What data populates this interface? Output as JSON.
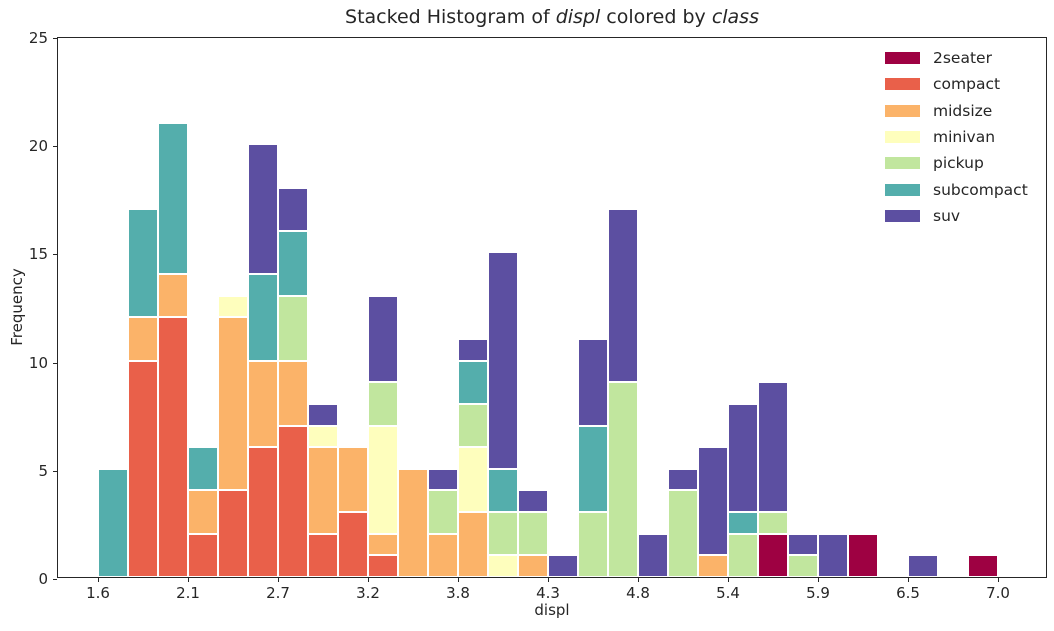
{
  "title": {
    "prefix": "Stacked Histogram of ",
    "var1": "displ",
    "middle": " colored by ",
    "var2": "class"
  },
  "axes": {
    "xlabel": "displ",
    "ylabel": "Frequency",
    "xlim": [
      1.36,
      7.3
    ],
    "ylim": [
      0,
      25
    ],
    "grid": false,
    "y_ticks": [
      0,
      5,
      10,
      15,
      20,
      25
    ],
    "x_ticks": [
      {
        "value": 1.6,
        "label": "1.6"
      },
      {
        "value": 2.14,
        "label": "2.1"
      },
      {
        "value": 2.68,
        "label": "2.7"
      },
      {
        "value": 3.22,
        "label": "3.2"
      },
      {
        "value": 3.76,
        "label": "3.8"
      },
      {
        "value": 4.3,
        "label": "4.3"
      },
      {
        "value": 4.84,
        "label": "4.8"
      },
      {
        "value": 5.38,
        "label": "5.4"
      },
      {
        "value": 5.92,
        "label": "5.9"
      },
      {
        "value": 6.46,
        "label": "6.5"
      },
      {
        "value": 7.0,
        "label": "7.0"
      }
    ]
  },
  "legend": {
    "position": "upper right",
    "entries": [
      {
        "label": "2seater",
        "color": "#9e0142"
      },
      {
        "label": "compact",
        "color": "#e9604a"
      },
      {
        "label": "midsize",
        "color": "#fbb369"
      },
      {
        "label": "minivan",
        "color": "#fefebd"
      },
      {
        "label": "pickup",
        "color": "#c1e69e"
      },
      {
        "label": "subcompact",
        "color": "#54aeac"
      },
      {
        "label": "suv",
        "color": "#5c4fa1"
      }
    ]
  },
  "chart_data": {
    "type": "bar",
    "subtype": "stacked-histogram",
    "title": "Stacked Histogram of displ colored by class",
    "xlabel": "displ",
    "ylabel": "Frequency",
    "xlim": [
      1.36,
      7.3
    ],
    "ylim": [
      0,
      25
    ],
    "bin_edges": [
      1.6,
      1.78,
      1.96,
      2.14,
      2.32,
      2.5,
      2.68,
      2.86,
      3.04,
      3.22,
      3.4,
      3.58,
      3.76,
      3.94,
      4.12,
      4.3,
      4.48,
      4.66,
      4.84,
      5.02,
      5.2,
      5.38,
      5.56,
      5.74,
      5.92,
      6.1,
      6.28,
      6.46,
      6.64,
      6.82,
      7.0
    ],
    "stack_order_bottom_to_top": [
      "2seater",
      "compact",
      "midsize",
      "minivan",
      "pickup",
      "subcompact",
      "suv"
    ],
    "series": [
      {
        "name": "2seater",
        "color": "#9e0142",
        "values": [
          0,
          0,
          0,
          0,
          0,
          0,
          0,
          0,
          0,
          0,
          0,
          0,
          0,
          0,
          0,
          0,
          0,
          0,
          0,
          0,
          0,
          0,
          2,
          0,
          0,
          2,
          0,
          0,
          0,
          1
        ]
      },
      {
        "name": "compact",
        "color": "#e9604a",
        "values": [
          0,
          10,
          12,
          2,
          4,
          6,
          7,
          2,
          3,
          1,
          0,
          0,
          0,
          0,
          0,
          0,
          0,
          0,
          0,
          0,
          0,
          0,
          0,
          0,
          0,
          0,
          0,
          0,
          0,
          0
        ]
      },
      {
        "name": "midsize",
        "color": "#fbb369",
        "values": [
          0,
          2,
          2,
          2,
          8,
          4,
          3,
          4,
          3,
          1,
          5,
          2,
          3,
          0,
          1,
          0,
          0,
          0,
          0,
          0,
          1,
          0,
          0,
          0,
          0,
          0,
          0,
          0,
          0,
          0
        ]
      },
      {
        "name": "minivan",
        "color": "#fefebd",
        "values": [
          0,
          0,
          0,
          0,
          1,
          0,
          0,
          1,
          0,
          5,
          0,
          0,
          3,
          1,
          0,
          0,
          0,
          0,
          0,
          0,
          0,
          0,
          0,
          0,
          0,
          0,
          0,
          0,
          0,
          0
        ]
      },
      {
        "name": "pickup",
        "color": "#c1e69e",
        "values": [
          0,
          0,
          0,
          0,
          0,
          0,
          3,
          0,
          0,
          2,
          0,
          2,
          2,
          2,
          2,
          0,
          3,
          9,
          0,
          4,
          0,
          2,
          1,
          1,
          0,
          0,
          0,
          0,
          0,
          0
        ]
      },
      {
        "name": "subcompact",
        "color": "#54aeac",
        "values": [
          5,
          5,
          7,
          2,
          0,
          4,
          3,
          0,
          0,
          0,
          0,
          0,
          2,
          2,
          0,
          0,
          4,
          0,
          0,
          0,
          0,
          1,
          0,
          0,
          0,
          0,
          0,
          0,
          0,
          0
        ]
      },
      {
        "name": "suv",
        "color": "#5c4fa1",
        "values": [
          0,
          0,
          0,
          0,
          0,
          6,
          2,
          1,
          0,
          4,
          0,
          1,
          1,
          10,
          1,
          1,
          4,
          8,
          2,
          1,
          5,
          5,
          6,
          1,
          2,
          0,
          0,
          1,
          0,
          0
        ]
      }
    ],
    "bar_totals": [
      5,
      17,
      21,
      6,
      13,
      20,
      18,
      8,
      6,
      13,
      5,
      5,
      11,
      15,
      4,
      1,
      11,
      17,
      2,
      5,
      6,
      8,
      9,
      2,
      2,
      2,
      0,
      1,
      0,
      1
    ],
    "total_count": 234
  }
}
